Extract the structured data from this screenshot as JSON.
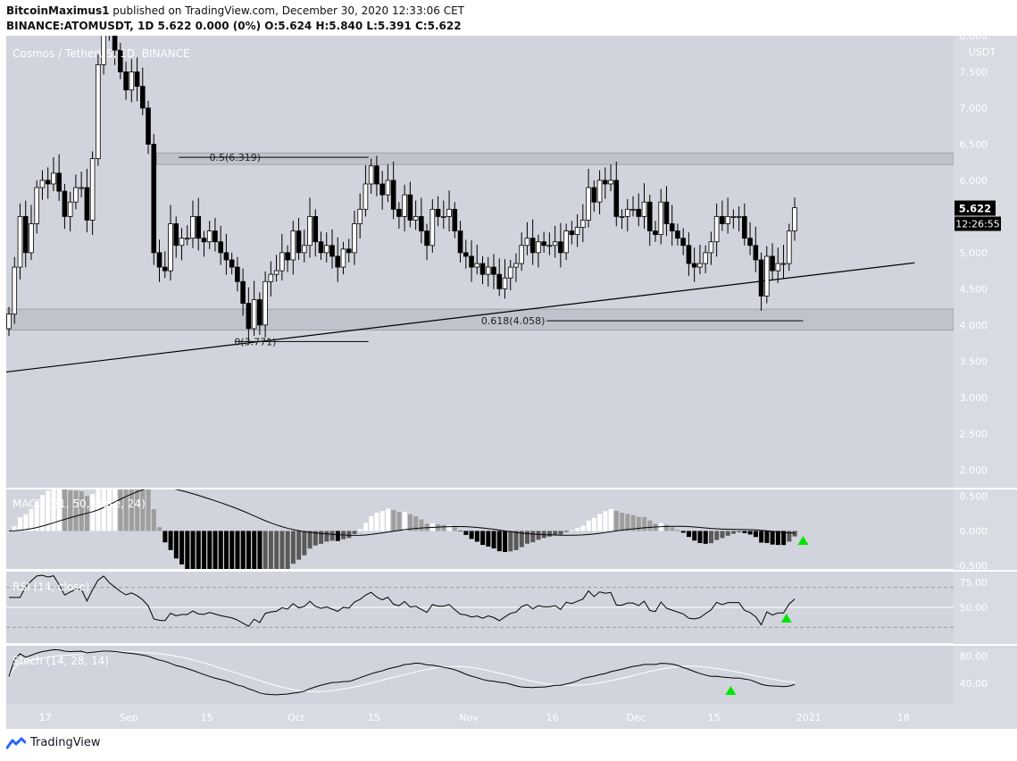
{
  "header": {
    "publisher": "BitcoinMaximus1",
    "publish_line": "published on TradingView.com, December 30, 2020 12:33:06 CET",
    "ohlc_line": "BINANCE:ATOMUSDT, 1D  5.622  0.000 (0%)  O:5.624  H:5.840  L:5.391  C:5.622"
  },
  "footer": {
    "brand": "TradingView"
  },
  "colors": {
    "panel_bg": "#d1d4dc",
    "candle_up": "#ffffff",
    "candle_down": "#000000",
    "hist_up_strong": "#ffffff",
    "hist_up_weak": "#9e9e9e",
    "hist_down_strong": "#000000",
    "hist_down_weak": "#5a5a5a",
    "signal_triangle": "#00e600",
    "zone_fill": "#c0c3cb"
  },
  "chart_data": [
    {
      "type": "candlestick",
      "title": "Cosmos / TetherUS, 1D, BINANCE",
      "currency": "USDT",
      "y_ticks": [
        "8.000",
        "7.500",
        "7.000",
        "6.500",
        "6.000",
        "5.500",
        "5.000",
        "4.500",
        "4.000",
        "3.500",
        "3.000",
        "2.500",
        "2.000"
      ],
      "ylim": [
        1.75,
        8.0
      ],
      "last_price": "5.622",
      "countdown": "12:26:55",
      "x_ticks": [
        "17",
        "Sep",
        "15",
        "Oct",
        "15",
        "Nov",
        "16",
        "Dec",
        "15",
        "2021",
        "18"
      ],
      "x_range": [
        "2020-08-10",
        "2021-01-27"
      ],
      "x_tick_dates": [
        "2020-08-17",
        "2020-09-01",
        "2020-09-15",
        "2020-10-01",
        "2020-10-15",
        "2020-11-01",
        "2020-11-16",
        "2020-12-01",
        "2020-12-15",
        "2021-01-01",
        "2021-01-18"
      ],
      "closes": [
        4.15,
        4.8,
        5.5,
        5.0,
        5.4,
        5.9,
        6.0,
        5.95,
        6.1,
        5.85,
        5.5,
        5.7,
        5.9,
        5.9,
        5.45,
        6.3,
        7.6,
        8.5,
        8.1,
        7.8,
        7.5,
        7.25,
        7.5,
        7.3,
        7.0,
        6.5,
        5.0,
        4.8,
        4.75,
        5.4,
        5.1,
        5.2,
        5.2,
        5.5,
        5.2,
        5.15,
        5.3,
        5.15,
        5.0,
        4.9,
        4.8,
        4.6,
        4.3,
        3.95,
        4.35,
        4.0,
        4.6,
        4.7,
        4.75,
        5.0,
        4.9,
        5.3,
        5.0,
        5.1,
        5.5,
        5.15,
        5.0,
        5.1,
        4.95,
        4.8,
        5.05,
        5.0,
        5.4,
        5.6,
        5.95,
        6.2,
        5.95,
        5.8,
        6.0,
        5.6,
        5.5,
        5.8,
        5.45,
        5.5,
        5.3,
        5.1,
        5.6,
        5.5,
        5.5,
        5.6,
        5.3,
        5.0,
        4.95,
        4.8,
        4.85,
        4.7,
        4.8,
        4.7,
        4.5,
        4.65,
        4.8,
        4.85,
        5.1,
        5.2,
        5.0,
        5.15,
        5.1,
        5.1,
        5.15,
        5.0,
        5.3,
        5.25,
        5.35,
        5.45,
        5.9,
        5.7,
        6.0,
        5.95,
        6.0,
        5.5,
        5.5,
        5.6,
        5.6,
        5.5,
        5.7,
        5.3,
        5.25,
        5.7,
        5.4,
        5.3,
        5.2,
        5.1,
        4.85,
        4.8,
        4.85,
        5.0,
        5.15,
        5.5,
        5.4,
        5.5,
        5.5,
        5.5,
        5.2,
        5.1,
        4.9,
        4.4,
        4.95,
        4.75,
        4.85,
        4.85,
        5.3,
        5.622
      ],
      "annotations": [
        {
          "text": "0.5(6.319)",
          "value": 6.319
        },
        {
          "text": "0.618(4.058)",
          "value": 4.058
        },
        {
          "text": "0(3.771)",
          "value": 3.771
        }
      ],
      "resistance_zone": [
        6.22,
        6.38
      ],
      "support_zone": [
        3.93,
        4.22
      ],
      "trendline": [
        {
          "date": "2020-08-10",
          "value": 3.35
        },
        {
          "date": "2021-01-20",
          "value": 4.86
        }
      ]
    },
    {
      "type": "histogram",
      "title": "MACD (21, 50, close, 24)",
      "y_ticks": [
        "0.500",
        "0.000",
        "-0.500"
      ],
      "ylim": [
        -0.55,
        0.6
      ],
      "signal_date": "2020-12-31"
    },
    {
      "type": "line",
      "title": "RSI (14, close)",
      "y_ticks": [
        "75.00",
        "50.00"
      ],
      "ylim": [
        14,
        86
      ],
      "bands": [
        70,
        30
      ],
      "signal_date": "2020-12-28"
    },
    {
      "type": "line",
      "title": "Stoch (14, 28, 14)",
      "y_ticks": [
        "80.00",
        "40.00"
      ],
      "ylim": [
        10,
        95
      ],
      "signal_date": "2020-12-18"
    }
  ]
}
